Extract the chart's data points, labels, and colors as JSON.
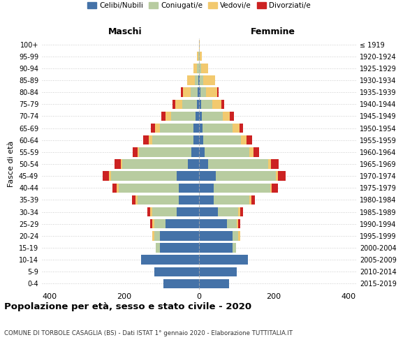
{
  "age_groups": [
    "0-4",
    "5-9",
    "10-14",
    "15-19",
    "20-24",
    "25-29",
    "30-34",
    "35-39",
    "40-44",
    "45-49",
    "50-54",
    "55-59",
    "60-64",
    "65-69",
    "70-74",
    "75-79",
    "80-84",
    "85-89",
    "90-94",
    "95-99",
    "100+"
  ],
  "birth_years": [
    "2015-2019",
    "2010-2014",
    "2005-2009",
    "2000-2004",
    "1995-1999",
    "1990-1994",
    "1985-1989",
    "1980-1984",
    "1975-1979",
    "1970-1974",
    "1965-1969",
    "1960-1964",
    "1955-1959",
    "1950-1954",
    "1945-1949",
    "1940-1944",
    "1935-1939",
    "1930-1934",
    "1925-1929",
    "1920-1924",
    "≤ 1919"
  ],
  "colors": {
    "celibe": "#4472a8",
    "coniugato": "#b8cca0",
    "vedovo": "#f2c96e",
    "divorziato": "#cc2222"
  },
  "maschi": {
    "celibe": [
      95,
      120,
      155,
      105,
      105,
      90,
      60,
      55,
      55,
      60,
      30,
      20,
      15,
      15,
      10,
      5,
      3,
      2,
      0,
      0,
      0
    ],
    "coniugato": [
      0,
      0,
      0,
      10,
      15,
      30,
      65,
      110,
      160,
      175,
      175,
      140,
      110,
      90,
      65,
      40,
      20,
      10,
      5,
      2,
      0
    ],
    "vedovo": [
      0,
      0,
      0,
      0,
      5,
      5,
      5,
      5,
      5,
      5,
      5,
      5,
      10,
      12,
      15,
      18,
      20,
      20,
      10,
      3,
      0
    ],
    "divorziato": [
      0,
      0,
      0,
      0,
      0,
      5,
      8,
      10,
      12,
      18,
      15,
      12,
      15,
      12,
      10,
      8,
      5,
      0,
      0,
      0,
      0
    ]
  },
  "femmine": {
    "nubile": [
      80,
      100,
      130,
      90,
      90,
      75,
      50,
      40,
      40,
      45,
      25,
      15,
      12,
      10,
      8,
      5,
      3,
      2,
      0,
      0,
      0
    ],
    "coniugata": [
      0,
      0,
      0,
      8,
      15,
      25,
      55,
      95,
      150,
      160,
      160,
      120,
      100,
      80,
      55,
      30,
      15,
      10,
      5,
      2,
      0
    ],
    "vedova": [
      0,
      0,
      0,
      0,
      5,
      5,
      5,
      5,
      5,
      5,
      8,
      10,
      15,
      18,
      20,
      25,
      30,
      30,
      20,
      5,
      2
    ],
    "divorziata": [
      0,
      0,
      0,
      0,
      0,
      5,
      8,
      10,
      15,
      22,
      20,
      15,
      15,
      10,
      10,
      8,
      5,
      0,
      0,
      0,
      0
    ]
  },
  "title": "Popolazione per età, sesso e stato civile - 2020",
  "subtitle": "COMUNE DI TORBOLE CASAGLIA (BS) - Dati ISTAT 1° gennaio 2020 - Elaborazione TUTTITALIA.IT",
  "xlabel_maschi": "Maschi",
  "xlabel_femmine": "Femmine",
  "ylabel_left": "Fasce di età",
  "xlim": 420,
  "legend_labels": [
    "Celibi/Nubili",
    "Coniugati/e",
    "Vedovi/e",
    "Divorziati/e"
  ]
}
